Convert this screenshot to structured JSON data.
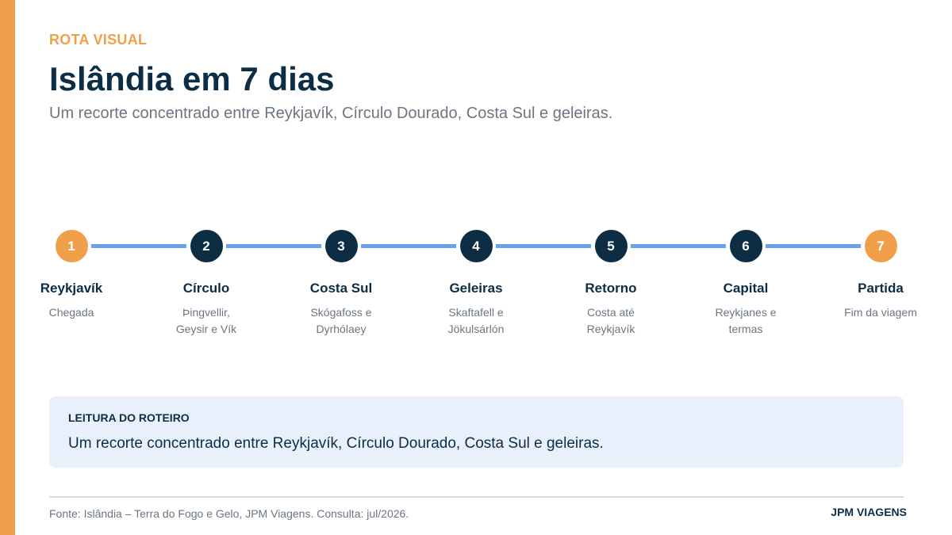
{
  "header": {
    "kicker": "ROTA VISUAL",
    "title": "Islândia em 7 dias",
    "subtitle": "Um recorte concentrado entre Reykjavík, Círculo Dourado, Costa Sul e geleiras."
  },
  "colors": {
    "accent": "#f0a04b",
    "navy": "#0d2d45",
    "connector": "#6aa0f0",
    "panel": "#e8f0fc"
  },
  "steps": [
    {
      "number": "1",
      "name": "Reykjavík",
      "desc": "Chegada",
      "color": "orange"
    },
    {
      "number": "2",
      "name": "Círculo",
      "desc": "Þingvellir, Geysir e Vík",
      "color": "navy"
    },
    {
      "number": "3",
      "name": "Costa Sul",
      "desc": "Skógafoss e Dyrhólaey",
      "color": "navy"
    },
    {
      "number": "4",
      "name": "Geleiras",
      "desc": "Skaftafell e Jökulsárlón",
      "color": "navy"
    },
    {
      "number": "5",
      "name": "Retorno",
      "desc": "Costa até Reykjavík",
      "color": "navy"
    },
    {
      "number": "6",
      "name": "Capital",
      "desc": "Reykjanes e termas",
      "color": "navy"
    },
    {
      "number": "7",
      "name": "Partida",
      "desc": "Fim da viagem",
      "color": "orange"
    }
  ],
  "reading": {
    "label": "LEITURA DO ROTEIRO",
    "text": "Um recorte concentrado entre Reykjavík, Círculo Dourado, Costa Sul e geleiras."
  },
  "footer": {
    "source": "Fonte: Islândia – Terra do Fogo e Gelo, JPM Viagens. Consulta: jul/2026.",
    "brand": "JPM VIAGENS"
  }
}
